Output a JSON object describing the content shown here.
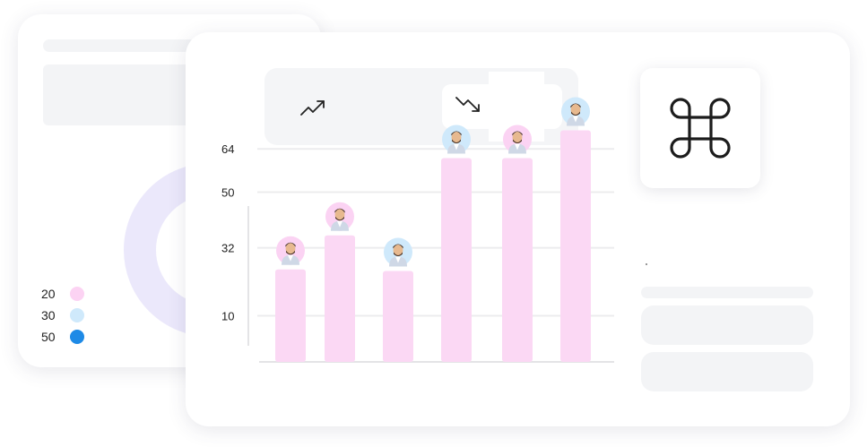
{
  "summary_card": {
    "donut": {
      "segments": [
        {
          "color": "#fad4f3",
          "value": 50
        },
        {
          "color": "#ebe8fb",
          "value": 50
        }
      ]
    },
    "legend": [
      {
        "label": "20",
        "color": "#fcd3f3"
      },
      {
        "label": "30",
        "color": "#cfe9fb"
      },
      {
        "label": "50",
        "color": "#1e8ae6"
      }
    ]
  },
  "trend_panel": {
    "up_icon": "trend-up-icon",
    "down_icon": "trend-down-icon"
  },
  "command_tile": {
    "icon": "command-key-icon"
  },
  "chart_data": {
    "type": "bar",
    "title": "",
    "xlabel": "",
    "ylabel": "",
    "y_ticks": [
      10,
      32,
      50,
      64
    ],
    "ylim": [
      0,
      72
    ],
    "grid": true,
    "bar_color": "#fbd8f4",
    "values": [
      25,
      36,
      24.5,
      61,
      61,
      70
    ],
    "avatar_bg": [
      "#fbd3f3",
      "#fbd3f3",
      "#cfe9fb",
      "#cfe9fb",
      "#fbd3f3",
      "#cfe9fb"
    ]
  }
}
